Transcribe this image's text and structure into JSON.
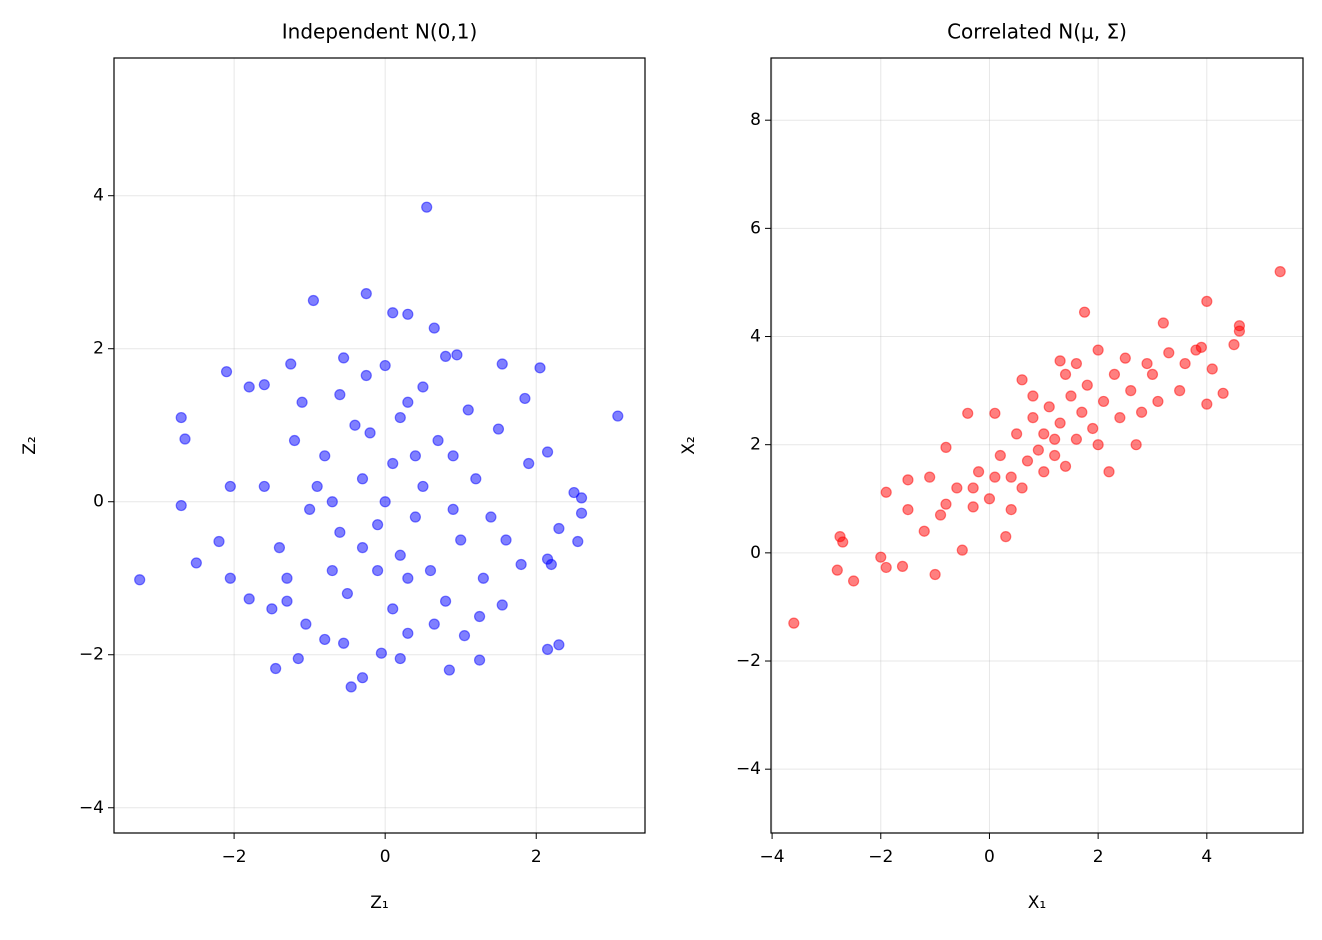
{
  "chart_data": [
    {
      "type": "scatter",
      "title": "Independent N(0,1)",
      "xlabel": "Z₁",
      "ylabel": "Z₂",
      "color": "blue",
      "alpha": 0.5,
      "grid": true,
      "xlim": [
        -3.59,
        3.44
      ],
      "ylim": [
        -4.33,
        5.8
      ],
      "xticks": [
        {
          "value": -2,
          "label": "−2"
        },
        0,
        2
      ],
      "yticks": [
        {
          "value": -4,
          "label": "−4"
        },
        {
          "value": -2,
          "label": "−2"
        },
        0,
        2,
        4
      ],
      "x": [
        -3.25,
        3.08,
        0.55,
        -0.25,
        -0.95,
        -0.45,
        -1.45,
        2.3,
        2.15,
        -2.7,
        -2.65,
        -2.7,
        -2.5,
        -2.1,
        2.5,
        2.6,
        2.6,
        2.55,
        2.3,
        2.05,
        1.55,
        0.1,
        0.3,
        0.65,
        1.25,
        0.85,
        0.2,
        -0.3,
        -1.15,
        -1.8,
        -2.05,
        -2.2,
        -2.05,
        -1.8,
        -1.6,
        -1.25,
        -0.55,
        -0.25,
        0.0,
        0.3,
        0.8,
        0.95,
        1.5,
        1.85,
        1.9,
        2.15,
        2.15,
        2.2,
        1.8,
        1.55,
        1.25,
        1.05,
        0.65,
        0.3,
        -0.05,
        -0.55,
        -0.8,
        -1.05,
        -1.3,
        -1.5,
        0.1,
        -0.3,
        0.4,
        -0.6,
        0.7,
        -0.8,
        0.2,
        -0.1,
        0.5,
        -0.4,
        1.0,
        -1.0,
        0.3,
        -0.7,
        1.2,
        -1.2,
        0.6,
        -0.2,
        0.9,
        -0.9,
        1.4,
        -1.4,
        0.0,
        0.2,
        -0.5,
        1.1,
        -1.1,
        0.8,
        -0.3,
        0.4,
        -1.6,
        1.6,
        0.1,
        -0.6,
        1.3,
        -1.3,
        0.5,
        -0.1,
        0.9,
        -0.7
      ],
      "values": [
        -1.02,
        1.12,
        3.85,
        2.72,
        2.63,
        -2.42,
        -2.18,
        -1.87,
        -1.93,
        1.1,
        0.82,
        -0.05,
        -0.8,
        1.7,
        0.12,
        0.05,
        -0.15,
        -0.52,
        -0.35,
        1.75,
        1.8,
        2.47,
        2.45,
        2.27,
        -2.07,
        -2.2,
        -2.05,
        -2.3,
        -2.05,
        -1.27,
        -1.0,
        -0.52,
        0.2,
        1.5,
        1.53,
        1.8,
        1.88,
        1.65,
        1.78,
        1.3,
        1.9,
        1.92,
        0.95,
        1.35,
        0.5,
        0.65,
        -0.75,
        -0.82,
        -0.82,
        -1.35,
        -1.5,
        -1.75,
        -1.6,
        -1.72,
        -1.98,
        -1.85,
        -1.8,
        -1.6,
        -1.3,
        -1.4,
        0.5,
        0.3,
        -0.2,
        -0.4,
        0.8,
        0.6,
        -0.7,
        -0.3,
        0.2,
        1.0,
        -0.5,
        -0.1,
        -1.0,
        -0.9,
        0.3,
        0.8,
        -0.9,
        0.9,
        0.6,
        0.2,
        -0.2,
        -0.6,
        0.0,
        1.1,
        -1.2,
        1.2,
        1.3,
        -1.3,
        -0.6,
        0.6,
        0.2,
        -0.5,
        -1.4,
        1.4,
        -1.0,
        -1.0,
        1.5,
        -0.9,
        -0.1,
        0.0
      ]
    },
    {
      "type": "scatter",
      "title": "Correlated N(μ, Σ)",
      "xlabel": "X₁",
      "ylabel": "X₂",
      "color": "red",
      "alpha": 0.5,
      "grid": true,
      "xlim": [
        -4.02,
        5.77
      ],
      "ylim": [
        -5.18,
        9.15
      ],
      "xticks": [
        {
          "value": -4,
          "label": "−4"
        },
        {
          "value": -2,
          "label": "−2"
        },
        0,
        2,
        4
      ],
      "yticks": [
        {
          "value": -4,
          "label": "−4"
        },
        {
          "value": -2,
          "label": "−2"
        },
        0,
        2,
        4,
        6,
        8
      ],
      "x": [
        -3.6,
        5.35,
        1.75,
        4.0,
        4.6,
        4.5,
        4.0,
        4.3,
        3.5,
        3.8,
        3.2,
        2.0,
        1.3,
        -2.75,
        -2.7,
        -2.8,
        -2.5,
        -2.0,
        -1.9,
        -1.6,
        -1.0,
        -1.9,
        -1.5,
        -0.8,
        -0.4,
        0.1,
        0.6,
        1.4,
        2.2,
        2.7,
        3.1,
        2.9,
        0.3,
        -0.5,
        -0.3,
        -1.2,
        -0.9,
        -0.6,
        -0.2,
        0.0,
        0.2,
        0.4,
        0.5,
        0.7,
        0.8,
        0.9,
        1.0,
        1.1,
        1.2,
        1.3,
        1.5,
        1.6,
        1.7,
        1.8,
        1.9,
        2.1,
        2.3,
        2.4,
        2.6,
        2.8,
        3.0,
        3.3,
        3.6,
        -1.5,
        -0.8,
        0.6,
        1.4,
        2.0,
        2.5,
        0.1,
        -0.3,
        0.8,
        1.6,
        1.0,
        -1.1,
        4.6,
        4.1,
        3.9,
        0.4,
        1.2
      ],
      "values": [
        -1.3,
        5.2,
        4.45,
        4.65,
        4.2,
        3.85,
        2.75,
        2.95,
        3.0,
        3.75,
        4.25,
        3.75,
        3.55,
        0.3,
        0.2,
        -0.32,
        -0.52,
        -0.08,
        -0.27,
        -0.25,
        -0.4,
        1.12,
        1.35,
        1.95,
        2.58,
        2.58,
        3.2,
        3.3,
        1.5,
        2.0,
        2.8,
        3.5,
        0.3,
        0.05,
        0.85,
        0.4,
        0.7,
        1.2,
        1.5,
        1.0,
        1.8,
        1.4,
        2.2,
        1.7,
        2.5,
        1.9,
        2.2,
        2.7,
        1.8,
        2.4,
        2.9,
        2.1,
        2.6,
        3.1,
        2.3,
        2.8,
        3.3,
        2.5,
        3.0,
        2.6,
        3.3,
        3.7,
        3.5,
        0.8,
        0.9,
        1.2,
        1.6,
        2.0,
        3.6,
        1.4,
        1.2,
        2.9,
        3.5,
        1.5,
        1.4,
        4.1,
        3.4,
        3.8,
        0.8,
        2.1
      ]
    }
  ]
}
